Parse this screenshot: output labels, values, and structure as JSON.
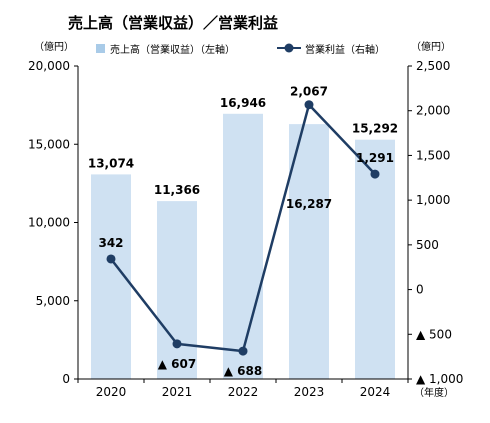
{
  "chart_data": {
    "type": "bar",
    "title": "売上高（営業収益）／営業利益",
    "left_unit": "（億円）",
    "right_unit": "（億円）",
    "x_unit": "（年度）",
    "categories": [
      "2020",
      "2021",
      "2022",
      "2023",
      "2024"
    ],
    "left_axis": {
      "ylim": [
        0,
        20000
      ],
      "ticks": [
        0,
        5000,
        10000,
        15000,
        20000
      ],
      "tick_labels": [
        "0",
        "5,000",
        "10,000",
        "15,000",
        "20,000"
      ]
    },
    "right_axis": {
      "ylim": [
        -1000,
        2500
      ],
      "ticks": [
        -1000,
        -500,
        0,
        500,
        1000,
        1500,
        2000,
        2500
      ],
      "tick_labels": [
        "▲ 1,000",
        "▲ 500",
        "0",
        "500",
        "1,000",
        "1,500",
        "2,000",
        "2,500"
      ]
    },
    "series": [
      {
        "name": "売上高（営業収益）（左軸）",
        "type": "bar",
        "axis": "left",
        "color": "#cfe1f2",
        "values": [
          13074,
          11366,
          16946,
          16287,
          15292
        ],
        "labels": [
          "13,074",
          "11,366",
          "16,946",
          "16,287",
          "15,292"
        ]
      },
      {
        "name": "営業利益（右軸）",
        "type": "line",
        "axis": "right",
        "color": "#1f3d64",
        "values": [
          342,
          -607,
          -688,
          2067,
          1291
        ],
        "labels": [
          "342",
          "▲ 607",
          "▲ 688",
          "2,067",
          "1,291"
        ]
      }
    ],
    "grid": false,
    "legend": "top"
  }
}
